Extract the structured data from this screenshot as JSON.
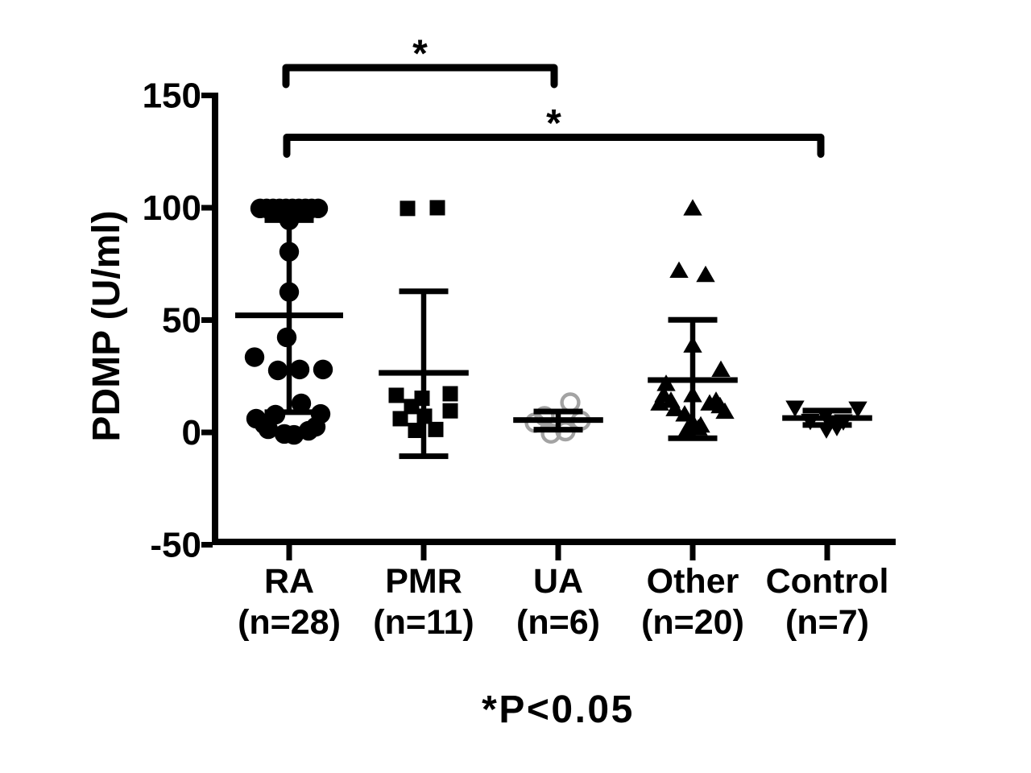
{
  "chart_data": {
    "type": "scatter",
    "title": "",
    "xlabel": "",
    "ylabel": "PDMP (U/ml)",
    "footnote": "*P<0.05",
    "ylim": [
      -50,
      150
    ],
    "yticks": [
      150,
      100,
      50,
      0,
      -50
    ],
    "grid": false,
    "legend": "none",
    "error_bar_style": "mean with SD whiskers and caps",
    "groups": [
      {
        "name": "RA",
        "label_lines": [
          "RA",
          "(n=28)"
        ],
        "n": 28,
        "marker": "circle-filled",
        "color": "#000000",
        "mean": 52.1,
        "upper": 94.5,
        "lower": 9.0,
        "points": [
          [
            -36,
            99.7
          ],
          [
            -28,
            99.7
          ],
          [
            -20,
            99.7
          ],
          [
            -12,
            99.7
          ],
          [
            -4,
            99.7
          ],
          [
            4,
            99.7
          ],
          [
            12,
            99.7
          ],
          [
            20,
            99.7
          ],
          [
            28,
            99.7
          ],
          [
            36,
            99.7
          ],
          [
            0,
            94.4
          ],
          [
            0,
            80.4
          ],
          [
            0,
            62.5
          ],
          [
            -3,
            42.3
          ],
          [
            -43,
            33.5
          ],
          [
            -14,
            27.6
          ],
          [
            13,
            28.0
          ],
          [
            42,
            28.0
          ],
          [
            -41,
            6.1
          ],
          [
            -17,
            7.9
          ],
          [
            15,
            12.9
          ],
          [
            39,
            8.2
          ],
          [
            -31,
            3.6
          ],
          [
            -26,
            1.4
          ],
          [
            -6,
            -0.7
          ],
          [
            6,
            -1.1
          ],
          [
            24,
            0.7
          ],
          [
            33,
            2.5
          ]
        ]
      },
      {
        "name": "PMR",
        "label_lines": [
          "PMR",
          "(n=11)"
        ],
        "n": 11,
        "marker": "square-filled",
        "color": "#000000",
        "mean": 26.5,
        "upper": 62.8,
        "lower": -10.6,
        "points": [
          [
            -20,
            99.7
          ],
          [
            17,
            100.0
          ],
          [
            -34,
            16.5
          ],
          [
            -2,
            15.2
          ],
          [
            33,
            17.2
          ],
          [
            -15,
            11.5
          ],
          [
            33,
            9.6
          ],
          [
            -29,
            6.1
          ],
          [
            1,
            7.2
          ],
          [
            -10,
            0.9
          ],
          [
            15,
            1.3
          ]
        ]
      },
      {
        "name": "UA",
        "label_lines": [
          "UA",
          "(n=6)"
        ],
        "n": 6,
        "marker": "circle-open",
        "color": "#a3a3a3",
        "mean": 5.5,
        "upper": 9.3,
        "lower": 1.2,
        "points": [
          [
            15,
            13.3
          ],
          [
            -17,
            7.2
          ],
          [
            -29,
            4.3
          ],
          [
            28,
            5.2
          ],
          [
            -9,
            -0.5
          ],
          [
            9,
            0.5
          ]
        ]
      },
      {
        "name": "Other",
        "label_lines": [
          "Other",
          "(n=20)"
        ],
        "n": 20,
        "marker": "triangle-up-filled",
        "color": "#000000",
        "mean": 23.3,
        "upper": 50.1,
        "lower": -2.6,
        "points": [
          [
            0,
            99.6
          ],
          [
            -17,
            71.9
          ],
          [
            16,
            70.0
          ],
          [
            0,
            38.6
          ],
          [
            35,
            27.8
          ],
          [
            -33,
            21.5
          ],
          [
            -36,
            16.5
          ],
          [
            0,
            16.5
          ],
          [
            -27,
            14.0
          ],
          [
            29,
            14.0
          ],
          [
            -41,
            12.8
          ],
          [
            21,
            12.8
          ],
          [
            34,
            11.6
          ],
          [
            -22,
            10.3
          ],
          [
            40,
            9.1
          ],
          [
            -10,
            7.9
          ],
          [
            0,
            4.2
          ],
          [
            10,
            3.0
          ],
          [
            7,
            1.7
          ],
          [
            -7,
            1.1
          ]
        ]
      },
      {
        "name": "Control",
        "label_lines": [
          "Control",
          "(n=7)"
        ],
        "n": 7,
        "marker": "triangle-down-filled",
        "color": "#000000",
        "mean": 6.4,
        "upper": 9.7,
        "lower": 3.3,
        "points": [
          [
            -40,
            11.1
          ],
          [
            38,
            10.7
          ],
          [
            -2,
            7.6
          ],
          [
            -21,
            5.2
          ],
          [
            20,
            5.0
          ],
          [
            12,
            2.5
          ],
          [
            -1,
            1.4
          ]
        ]
      }
    ],
    "significance": [
      {
        "from": "RA",
        "to": "UA",
        "label": "*"
      },
      {
        "from": "RA",
        "to": "Control",
        "label": "*"
      }
    ]
  }
}
